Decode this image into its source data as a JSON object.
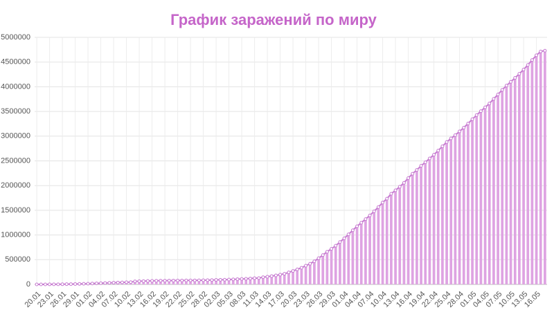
{
  "chart_data": {
    "type": "bar_line",
    "title": "График заражений по миру",
    "categories": [
      "20.01",
      null,
      null,
      "23.01",
      null,
      null,
      "26.01",
      null,
      null,
      "29.01",
      null,
      null,
      "01.02",
      null,
      null,
      "04.02",
      null,
      null,
      "07.02",
      null,
      null,
      "10.02",
      null,
      null,
      "13.02",
      null,
      null,
      "16.02",
      null,
      null,
      "19.02",
      null,
      null,
      "22.02",
      null,
      null,
      "25.02",
      null,
      null,
      "28.02",
      null,
      null,
      "02.03",
      null,
      null,
      "05.03",
      null,
      null,
      "08.03",
      null,
      null,
      "11.03",
      null,
      null,
      "14.03",
      null,
      null,
      "17.03",
      null,
      null,
      "20.03",
      null,
      null,
      "23.03",
      null,
      null,
      "26.03",
      null,
      null,
      "29.03",
      null,
      null,
      "01.04",
      null,
      null,
      "04.04",
      null,
      null,
      "07.04",
      null,
      null,
      "10.04",
      null,
      null,
      "13.04",
      null,
      null,
      "16.04",
      null,
      null,
      "19.04",
      null,
      null,
      "22.04",
      null,
      null,
      "25.04",
      null,
      null,
      "28.04",
      null,
      null,
      "01.05",
      null,
      null,
      "04.05",
      null,
      null,
      "07.05",
      null,
      null,
      "10.05",
      null,
      null,
      "13.05",
      null,
      null,
      "16.05",
      null,
      null
    ],
    "values": [
      300,
      400,
      600,
      900,
      1300,
      2000,
      2800,
      4600,
      6000,
      7800,
      9800,
      11900,
      14500,
      17400,
      20600,
      24600,
      28300,
      31500,
      34900,
      37600,
      40600,
      43100,
      45200,
      60400,
      64400,
      67100,
      69200,
      71300,
      73300,
      75200,
      75700,
      76800,
      77800,
      78800,
      79300,
      80000,
      80500,
      81300,
      82200,
      83500,
      85400,
      88000,
      90300,
      92800,
      95100,
      97900,
      101800,
      105800,
      109800,
      113600,
      118600,
      125900,
      128400,
      145200,
      156100,
      167500,
      181500,
      197100,
      214900,
      242500,
      272200,
      304500,
      337000,
      378000,
      418000,
      467500,
      529600,
      593300,
      660700,
      720100,
      782400,
      857500,
      932600,
      1013000,
      1095900,
      1176000,
      1249000,
      1321000,
      1396000,
      1480000,
      1565000,
      1657000,
      1735000,
      1835000,
      1904000,
      1976000,
      2056000,
      2152000,
      2240000,
      2317000,
      2401000,
      2472000,
      2549000,
      2624000,
      2708000,
      2795000,
      2881000,
      2955000,
      3021000,
      3097000,
      3172000,
      3256000,
      3343000,
      3427000,
      3506000,
      3583000,
      3662000,
      3755000,
      3845000,
      3938000,
      4024000,
      4101000,
      4180000,
      4263000,
      4348000,
      4442000,
      4542000,
      4637000,
      4715000,
      4730000
    ],
    "color": "#dea3e2",
    "line_color": "#c67ad0",
    "ylim": [
      0,
      5000000
    ],
    "yticks": [
      0,
      500000,
      1000000,
      1500000,
      2000000,
      2500000,
      3000000,
      3500000,
      4000000,
      4500000,
      5000000
    ],
    "grid": true
  }
}
